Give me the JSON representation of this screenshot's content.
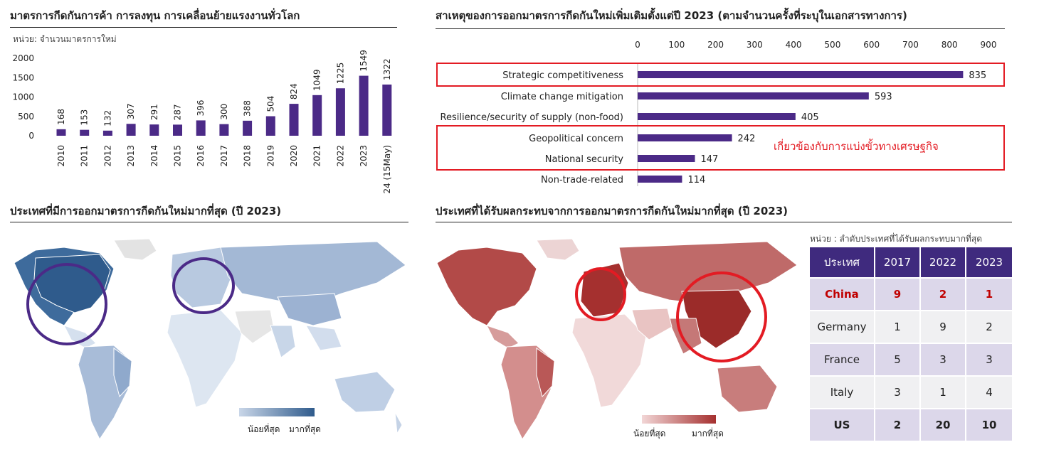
{
  "colors": {
    "bar": "#4b2a87",
    "red": "#e31b23",
    "blue_dark": "#2f5b8c",
    "blue_light": "#c9d6e8",
    "red_dark": "#a5302f",
    "red_light": "#f2d6d6"
  },
  "top_left": {
    "title": "มาตรการกีดกันการค้า การลงทุน การเคลื่อนย้ายแรงงานทั่วโลก",
    "unit": "หน่วย: จำนวนมาตรการใหม่"
  },
  "top_right": {
    "title": "สาเหตุของการออกมาตรการกีดกันใหม่เพิ่มเติมตั้งแต่ปี  2023 (ตามจำนวนครั้งที่ระบุในเอกสารทางการ)",
    "annotation": "เกี่ยวข้องกับการแบ่งขั้วทางเศรษฐกิจ"
  },
  "bottom_left": {
    "title": "ประเทศที่มีการออกมาตรการกีดกันใหม่มากที่สุด  (ปี 2023)",
    "legend_min": "น้อยที่สุด",
    "legend_max": "มากที่สุด"
  },
  "bottom_right": {
    "title": "ประเทศที่ได้รับผลกระทบจากการออกมาตรการกีดกันใหม่มากที่สุด  (ปี 2023)",
    "unit": "หน่วย : ลำดับประเทศที่ได้รับผลกระทบมากที่สุด",
    "legend_min": "น้อยที่สุด",
    "legend_max": "มากที่สุด",
    "table": {
      "headers": [
        "ประเทศ",
        "2017",
        "2022",
        "2023"
      ],
      "rows": [
        {
          "country": "China",
          "v": [
            "9",
            "2",
            "1"
          ]
        },
        {
          "country": "Germany",
          "v": [
            "1",
            "9",
            "2"
          ]
        },
        {
          "country": "France",
          "v": [
            "5",
            "3",
            "3"
          ]
        },
        {
          "country": "Italy",
          "v": [
            "3",
            "1",
            "4"
          ]
        },
        {
          "country": "US",
          "v": [
            "2",
            "20",
            "10"
          ]
        }
      ]
    }
  },
  "chart_data": [
    {
      "type": "bar",
      "categories": [
        "2010",
        "2011",
        "2012",
        "2013",
        "2014",
        "2015",
        "2016",
        "2017",
        "2018",
        "2019",
        "2020",
        "2021",
        "2022",
        "2023",
        "24 (15May)"
      ],
      "values": [
        168,
        153,
        132,
        307,
        291,
        287,
        396,
        300,
        388,
        504,
        824,
        1049,
        1225,
        1549,
        1322
      ],
      "ylim": [
        0,
        2000
      ],
      "yticks": [
        2000,
        1500,
        1000,
        500,
        0
      ],
      "grid": false
    },
    {
      "type": "bar",
      "orientation": "horizontal",
      "categories": [
        "Strategic competitiveness",
        "Climate change mitigation",
        "Resilience/security of supply (non-food)",
        "Geopolitical concern",
        "National security",
        "Non-trade-related"
      ],
      "values": [
        835,
        593,
        405,
        242,
        147,
        114
      ],
      "xlim": [
        0,
        900
      ],
      "xticks": [
        0,
        100,
        200,
        300,
        400,
        500,
        600,
        700,
        800,
        900
      ]
    }
  ]
}
